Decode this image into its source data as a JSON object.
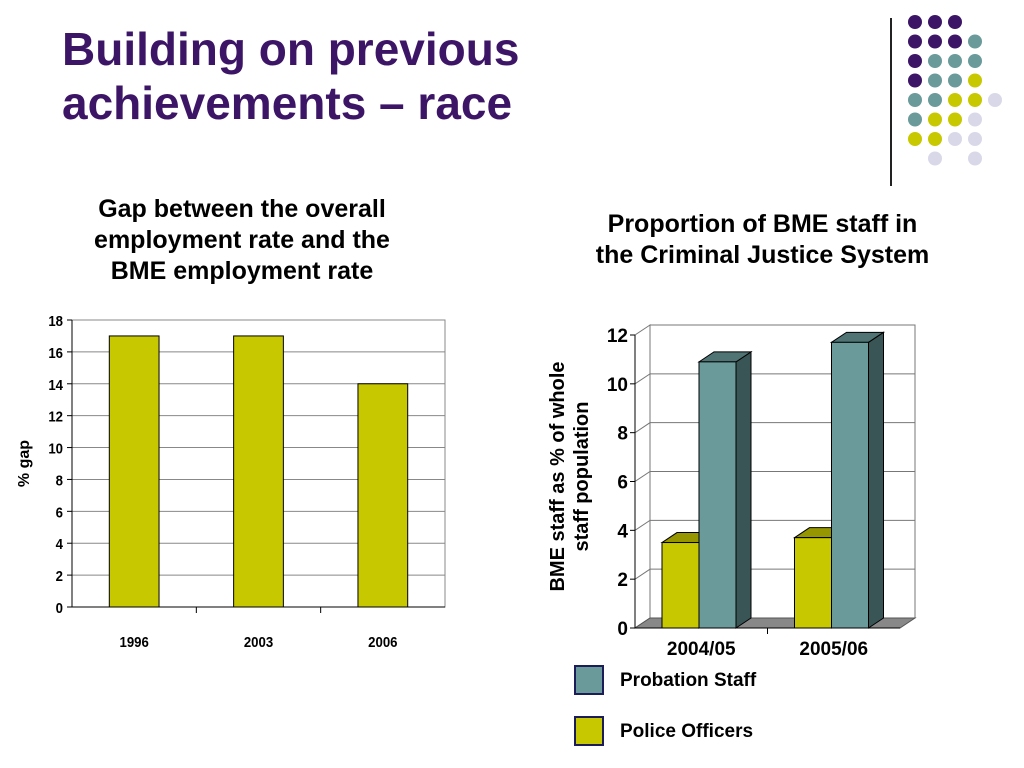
{
  "slide": {
    "title_line1": "Building on previous",
    "title_line2": "achievements – race",
    "title_color": "#3d1566",
    "decor_dot_colors": [
      "#3d1566",
      "#6a9a9a",
      "#c8c800",
      "#d8d8e8"
    ]
  },
  "chart_data": [
    {
      "type": "bar",
      "title_lines": [
        "Gap between the overall",
        "employment rate and the",
        "BME employment rate"
      ],
      "categories": [
        "1996",
        "2003",
        "2006"
      ],
      "series": [
        {
          "values": [
            17,
            17,
            14
          ],
          "color": "#c8c800"
        }
      ],
      "xlabel": "",
      "ylabel": "% gap",
      "ylim": [
        0,
        18
      ],
      "yticks": [
        0,
        2,
        4,
        6,
        8,
        10,
        12,
        14,
        16,
        18
      ],
      "grid": true
    },
    {
      "type": "bar",
      "style": "3d",
      "title_lines": [
        "Proportion of BME staff in",
        "the Criminal Justice System"
      ],
      "categories": [
        "2004/05",
        "2005/06"
      ],
      "series": [
        {
          "name": "Police Officers",
          "values": [
            3.5,
            3.7
          ],
          "color": "#c8c800"
        },
        {
          "name": "Probation Staff",
          "values": [
            10.9,
            11.7
          ],
          "color": "#6a9a9a"
        }
      ],
      "xlabel": "",
      "ylabel_lines": [
        "BME staff as % of whole",
        "staff population"
      ],
      "ylim": [
        0,
        12
      ],
      "yticks": [
        0,
        2,
        4,
        6,
        8,
        10,
        12
      ],
      "grid": true,
      "legend": {
        "placement": "bottom",
        "entries": [
          "Probation Staff",
          "Police Officers"
        ]
      }
    }
  ]
}
